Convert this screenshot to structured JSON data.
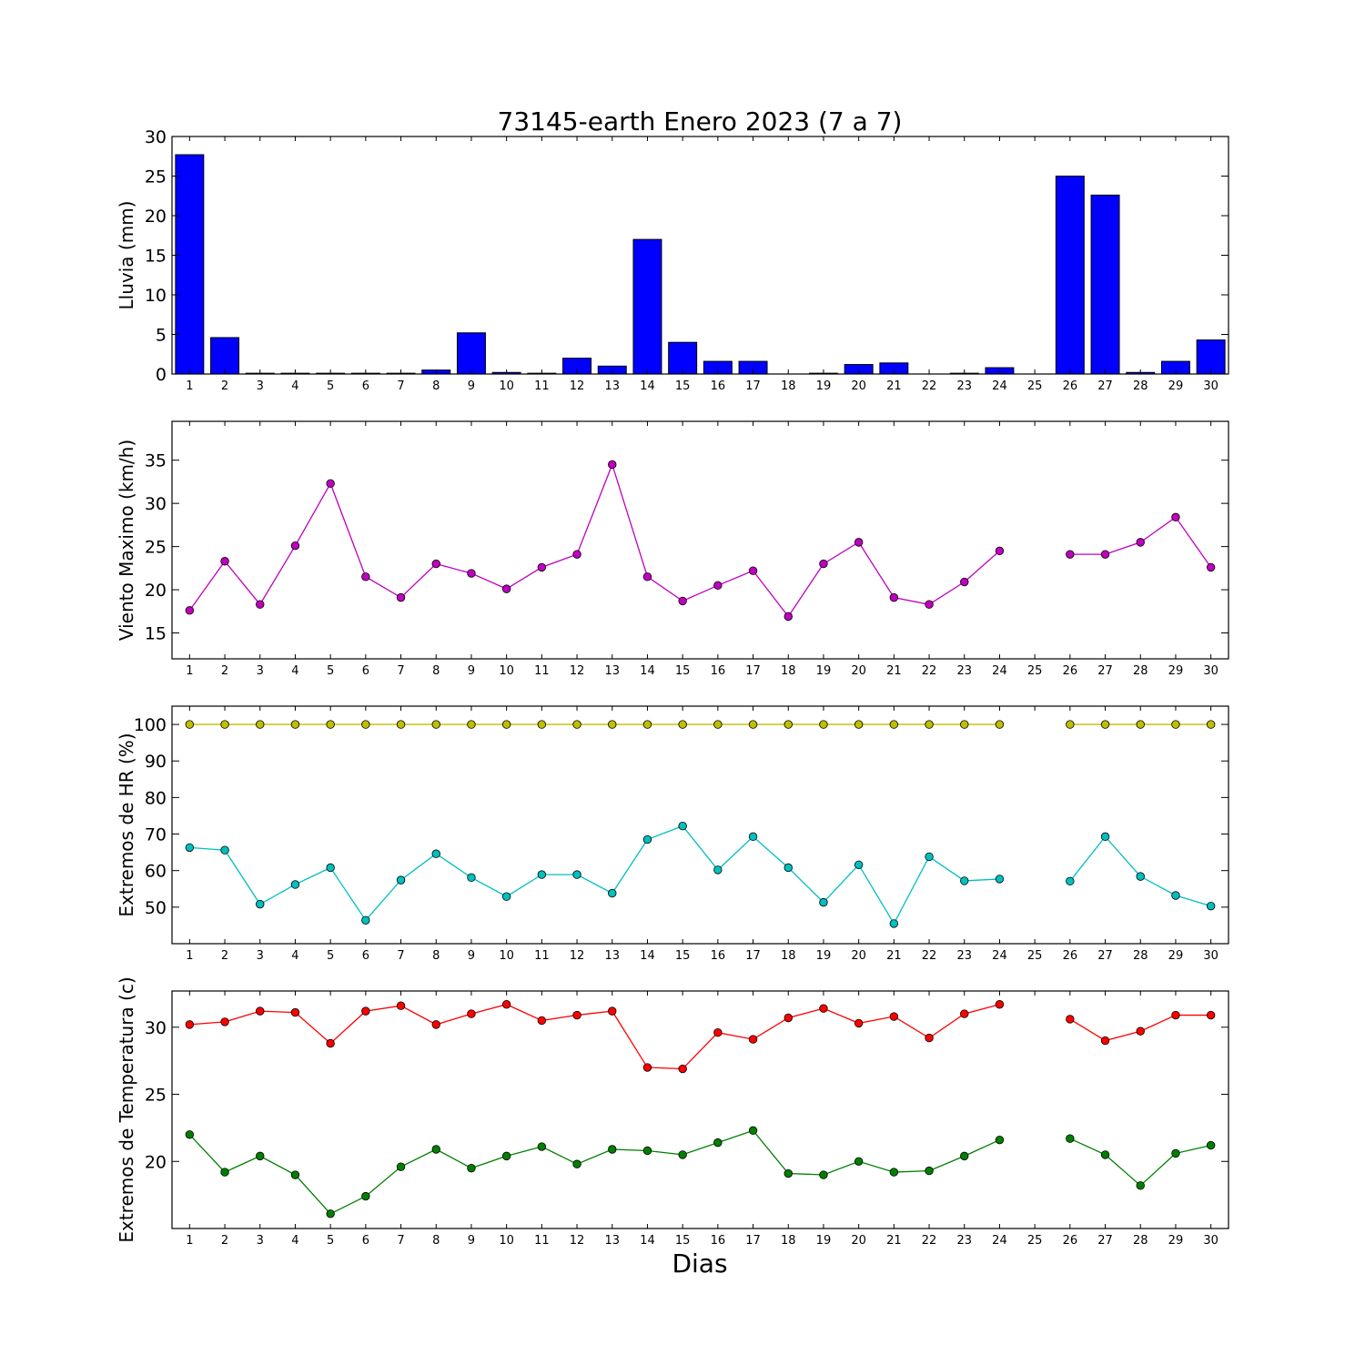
{
  "figure": {
    "title": "73145-earth Enero 2023  (7 a 7)",
    "xlabel": "Dias"
  },
  "chart_data": [
    {
      "type": "bar",
      "ylabel": "Lluvia (mm)",
      "xlim": [
        0.5,
        30.5
      ],
      "ylim": [
        0,
        30
      ],
      "yticks": [
        0,
        5,
        10,
        15,
        20,
        25,
        30
      ],
      "x": [
        1,
        2,
        3,
        4,
        5,
        6,
        7,
        8,
        9,
        10,
        11,
        12,
        13,
        14,
        15,
        16,
        17,
        18,
        19,
        20,
        21,
        22,
        23,
        24,
        25,
        26,
        27,
        28,
        29,
        30
      ],
      "series": [
        {
          "color": "#0000ff",
          "values": [
            27.7,
            4.6,
            0.1,
            0.1,
            0.1,
            0.1,
            0.1,
            0.5,
            5.2,
            0.2,
            0.1,
            2.0,
            1.0,
            17.0,
            4.0,
            1.6,
            1.6,
            0,
            0.1,
            1.2,
            1.4,
            0,
            0.1,
            0.8,
            null,
            25.0,
            22.6,
            0.2,
            1.6,
            4.3
          ]
        }
      ],
      "grid": false
    },
    {
      "type": "line",
      "ylabel": "Viento Maximo (km/h)",
      "xlim": [
        0.5,
        30.5
      ],
      "ylim": [
        12,
        39.5
      ],
      "yticks": [
        15,
        20,
        25,
        30,
        35
      ],
      "x": [
        1,
        2,
        3,
        4,
        5,
        6,
        7,
        8,
        9,
        10,
        11,
        12,
        13,
        14,
        15,
        16,
        17,
        18,
        19,
        20,
        21,
        22,
        23,
        24,
        25,
        26,
        27,
        28,
        29,
        30
      ],
      "series": [
        {
          "color": "#bf00bf",
          "values": [
            17.6,
            23.3,
            18.3,
            25.1,
            32.3,
            21.5,
            19.1,
            23.0,
            21.9,
            20.1,
            22.6,
            24.1,
            34.5,
            21.5,
            18.7,
            20.5,
            22.2,
            16.9,
            23.0,
            25.5,
            19.1,
            18.3,
            20.9,
            24.5,
            null,
            24.1,
            24.1,
            25.5,
            28.4,
            22.6
          ]
        }
      ],
      "grid": false
    },
    {
      "type": "line",
      "ylabel": "Extremos de HR (%)",
      "xlim": [
        0.5,
        30.5
      ],
      "ylim": [
        40,
        105
      ],
      "yticks": [
        50,
        60,
        70,
        80,
        90,
        100
      ],
      "x": [
        1,
        2,
        3,
        4,
        5,
        6,
        7,
        8,
        9,
        10,
        11,
        12,
        13,
        14,
        15,
        16,
        17,
        18,
        19,
        20,
        21,
        22,
        23,
        24,
        25,
        26,
        27,
        28,
        29,
        30
      ],
      "series": [
        {
          "color": "#bfbf00",
          "values": [
            100,
            100,
            100,
            100,
            100,
            100,
            100,
            100,
            100,
            100,
            100,
            100,
            100,
            100,
            100,
            100,
            100,
            100,
            100,
            100,
            100,
            100,
            100,
            100,
            null,
            100,
            100,
            100,
            100,
            100
          ]
        },
        {
          "color": "#00bfbf",
          "values": [
            66.3,
            65.6,
            50.8,
            56.2,
            60.8,
            46.4,
            57.4,
            64.6,
            58.1,
            52.9,
            58.9,
            58.9,
            53.8,
            68.5,
            72.2,
            60.2,
            69.3,
            60.8,
            51.3,
            61.6,
            45.5,
            63.8,
            57.2,
            57.7,
            null,
            57.1,
            69.3,
            58.4,
            53.2,
            50.3
          ]
        }
      ],
      "grid": false
    },
    {
      "type": "line",
      "ylabel": "Extremos de Temperatura (c)",
      "xlim": [
        0.5,
        30.5
      ],
      "ylim": [
        15,
        32.7
      ],
      "yticks": [
        20,
        25,
        30
      ],
      "x": [
        1,
        2,
        3,
        4,
        5,
        6,
        7,
        8,
        9,
        10,
        11,
        12,
        13,
        14,
        15,
        16,
        17,
        18,
        19,
        20,
        21,
        22,
        23,
        24,
        25,
        26,
        27,
        28,
        29,
        30
      ],
      "series": [
        {
          "color": "#ff0000",
          "values": [
            30.2,
            30.4,
            31.2,
            31.1,
            28.8,
            31.2,
            31.6,
            30.2,
            31.0,
            31.7,
            30.5,
            30.9,
            31.2,
            27.0,
            26.9,
            29.6,
            29.1,
            30.7,
            31.4,
            30.3,
            30.8,
            29.2,
            31.0,
            31.7,
            null,
            30.6,
            29.0,
            29.7,
            30.9,
            30.9
          ]
        },
        {
          "color": "#007f00",
          "values": [
            22.0,
            19.2,
            20.4,
            19.0,
            16.1,
            17.4,
            19.6,
            20.9,
            19.5,
            20.4,
            21.1,
            19.8,
            20.9,
            20.8,
            20.5,
            21.4,
            22.3,
            19.1,
            19.0,
            20.0,
            19.2,
            19.3,
            20.4,
            21.6,
            null,
            21.7,
            20.5,
            18.2,
            20.6,
            21.2
          ]
        }
      ],
      "grid": false
    }
  ]
}
